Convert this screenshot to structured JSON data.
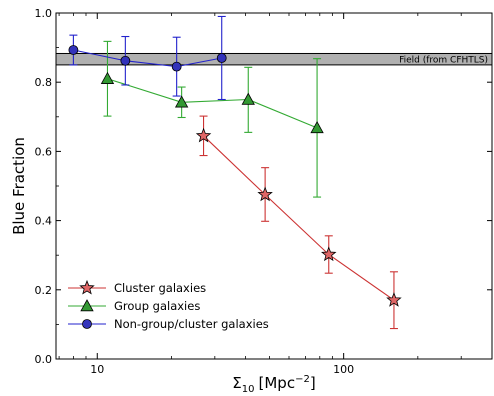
{
  "chart_data": {
    "type": "line",
    "xlabel_base": "Σ",
    "xlabel_sub": "10",
    "xlabel_unit": "[Mpc",
    "xlabel_exp": "−2",
    "xlabel_close": "]",
    "ylabel": "Blue Fraction",
    "xscale": "log",
    "xlim": [
      6.8,
      400
    ],
    "ylim": [
      0.0,
      1.0
    ],
    "xticks": [
      {
        "value": 10,
        "label": "10"
      },
      {
        "value": 100,
        "label": "100"
      }
    ],
    "yticks": [
      {
        "value": 0.0,
        "label": "0.0"
      },
      {
        "value": 0.2,
        "label": "0.2"
      },
      {
        "value": 0.4,
        "label": "0.4"
      },
      {
        "value": 0.6,
        "label": "0.6"
      },
      {
        "value": 0.8,
        "label": "0.8"
      },
      {
        "value": 1.0,
        "label": "1.0"
      }
    ],
    "band": {
      "label": "Field (from CFHTLS)",
      "y_low": 0.85,
      "y_high": 0.883,
      "color": "#b0b0b0"
    },
    "legend_position": "lower-left",
    "series": [
      {
        "name": "Cluster galaxies",
        "color": "#cc3333",
        "fill": "#e06666",
        "marker": "star",
        "points": [
          {
            "x": 27,
            "y": 0.645,
            "lo": 0.588,
            "hi": 0.702
          },
          {
            "x": 48,
            "y": 0.475,
            "lo": 0.398,
            "hi": 0.553
          },
          {
            "x": 87,
            "y": 0.302,
            "lo": 0.248,
            "hi": 0.356
          },
          {
            "x": 160,
            "y": 0.17,
            "lo": 0.088,
            "hi": 0.252
          }
        ]
      },
      {
        "name": "Group galaxies",
        "color": "#33aa33",
        "fill": "#339933",
        "marker": "triangle",
        "points": [
          {
            "x": 11,
            "y": 0.81,
            "lo": 0.702,
            "hi": 0.918
          },
          {
            "x": 22,
            "y": 0.742,
            "lo": 0.698,
            "hi": 0.786
          },
          {
            "x": 41,
            "y": 0.75,
            "lo": 0.655,
            "hi": 0.843
          },
          {
            "x": 78,
            "y": 0.668,
            "lo": 0.468,
            "hi": 0.868
          }
        ]
      },
      {
        "name": "Non-group/cluster galaxies",
        "color": "#2222cc",
        "fill": "#3333bb",
        "marker": "circle",
        "points": [
          {
            "x": 8,
            "y": 0.893,
            "lo": 0.85,
            "hi": 0.936
          },
          {
            "x": 13,
            "y": 0.862,
            "lo": 0.792,
            "hi": 0.932
          },
          {
            "x": 21,
            "y": 0.845,
            "lo": 0.76,
            "hi": 0.93
          },
          {
            "x": 32,
            "y": 0.87,
            "lo": 0.75,
            "hi": 0.99
          }
        ]
      }
    ]
  }
}
